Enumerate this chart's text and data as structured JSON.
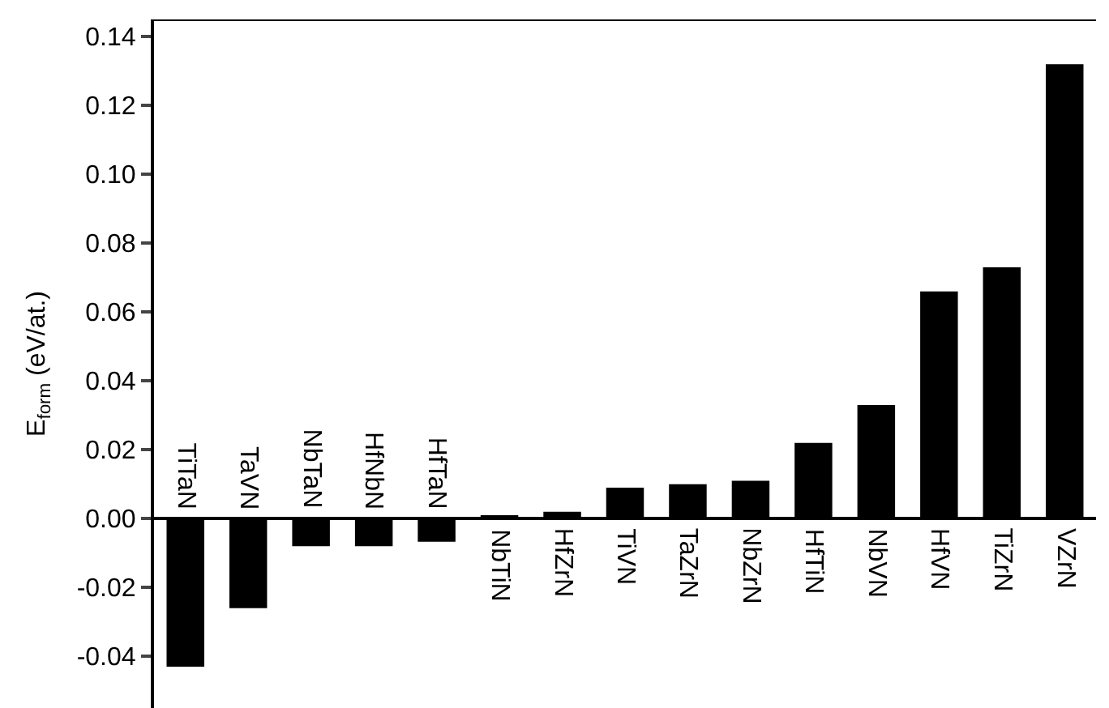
{
  "chart_data": {
    "type": "bar",
    "ylabel": "E$_{form}$ (eV/at.)",
    "categories": [
      "TiTaN",
      "TaVN",
      "NbTaN",
      "HfNbN",
      "HfTaN",
      "NbTiN",
      "HfZrN",
      "TiVN",
      "TaZrN",
      "NbZrN",
      "HfTiN",
      "NbVN",
      "HfVN",
      "TiZrN",
      "VZrN"
    ],
    "values": [
      -0.043,
      -0.026,
      -0.008,
      -0.008,
      -0.0067,
      0.001,
      0.002,
      0.009,
      0.01,
      0.011,
      0.022,
      0.033,
      0.066,
      0.073,
      0.132
    ],
    "color": "#000000",
    "ylim": [
      -0.055,
      0.145
    ],
    "yticks": [
      {
        "value": -0.04,
        "label": "-0.04"
      },
      {
        "value": -0.02,
        "label": "-0.02"
      },
      {
        "value": 0,
        "label": "0.00"
      },
      {
        "value": 0.02,
        "label": "0.02"
      },
      {
        "value": 0.04,
        "label": "0.04"
      },
      {
        "value": 0.06,
        "label": "0.06"
      },
      {
        "value": 0.08,
        "label": "0.08"
      },
      {
        "value": 0.1,
        "label": "0.10"
      },
      {
        "value": 0.12,
        "label": "0.12"
      },
      {
        "value": 0.14,
        "label": "0.14"
      }
    ]
  }
}
